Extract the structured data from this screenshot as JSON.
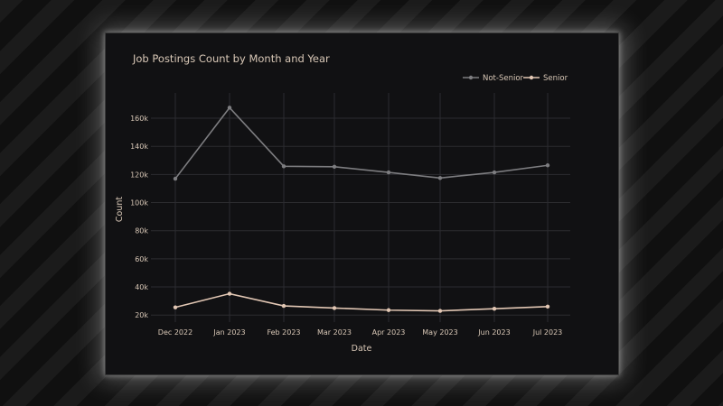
{
  "chart_data": {
    "type": "line",
    "title": "Job Postings Count by Month and Year",
    "xlabel": "Date",
    "ylabel": "Count",
    "categories": [
      "Dec 2022",
      "Jan 2023",
      "Feb 2023",
      "Mar 2023",
      "Apr 2023",
      "May 2023",
      "Jun 2023",
      "Jul 2023"
    ],
    "ylim": [
      15000,
      178000
    ],
    "yticks": [
      20000,
      40000,
      60000,
      80000,
      100000,
      120000,
      140000,
      160000
    ],
    "ytick_labels": [
      "20k",
      "40k",
      "60k",
      "80k",
      "100k",
      "120k",
      "140k",
      "160k"
    ],
    "grid": true,
    "legend_position": "top-right",
    "series": [
      {
        "name": "Not-Senior",
        "color": "#7d7d80",
        "values": [
          117000,
          167500,
          125800,
          125500,
          121500,
          117500,
          121500,
          126500
        ]
      },
      {
        "name": "Senior",
        "color": "#e2c7b4",
        "values": [
          25500,
          35200,
          26500,
          25000,
          23500,
          23000,
          24500,
          26000
        ]
      }
    ]
  }
}
